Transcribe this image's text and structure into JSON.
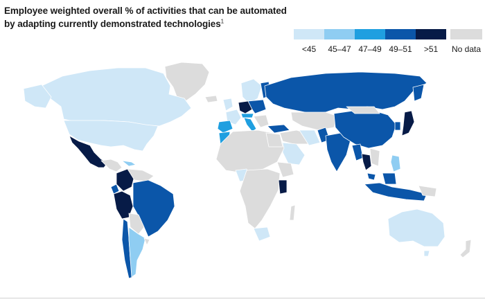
{
  "title_line1": "Employee weighted overall % of activities that can be automated",
  "title_line2": "by adapting currently demonstrated technologies",
  "title_footnote": "1",
  "legend": [
    {
      "label": "<45",
      "color": "#cfe7f7"
    },
    {
      "label": "45–47",
      "color": "#8fcdf2"
    },
    {
      "label": "47–49",
      "color": "#1f9fe0"
    },
    {
      "label": "49–51",
      "color": "#0b56a9"
    },
    {
      "label": ">51",
      "color": "#071b47"
    },
    {
      "label": "No data",
      "color": "#dcdcdc"
    }
  ]
}
